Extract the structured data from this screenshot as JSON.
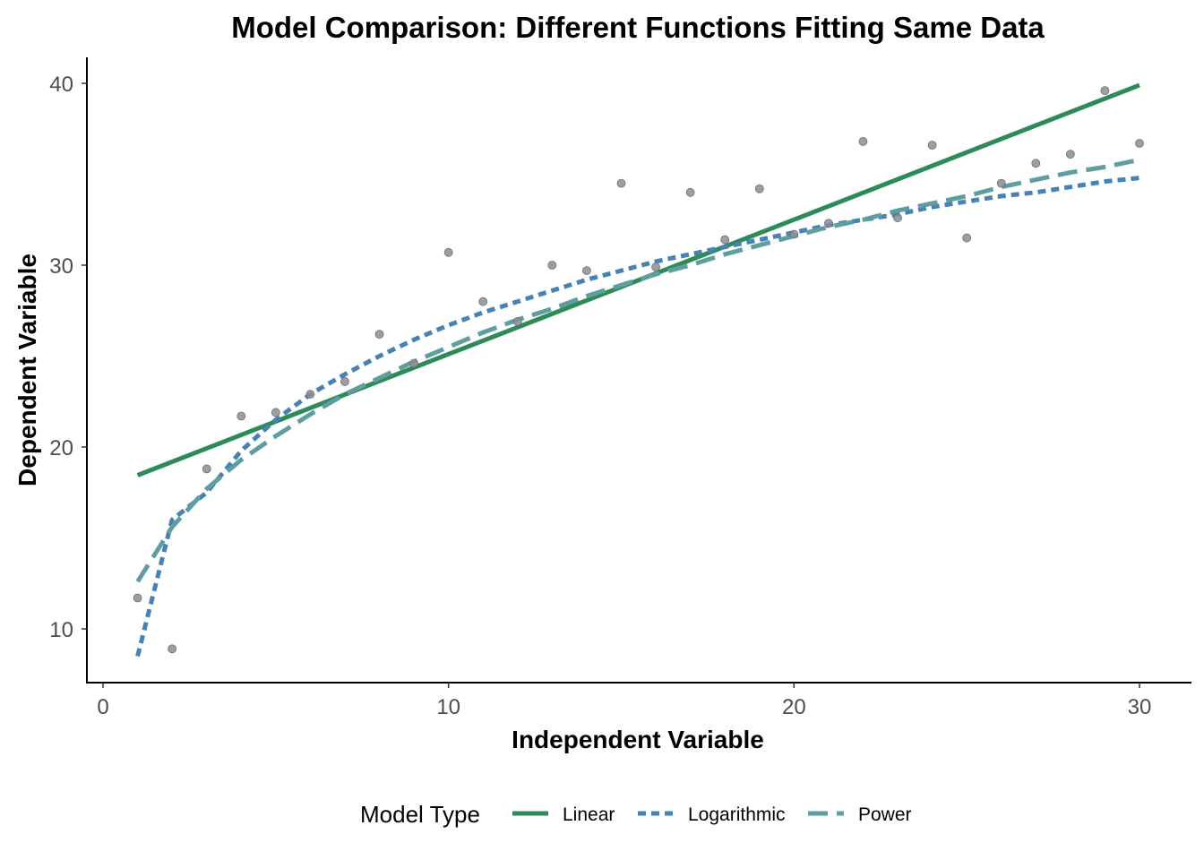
{
  "chart_data": {
    "type": "line",
    "title": "Model Comparison: Different Functions Fitting Same Data",
    "xlabel": "Independent Variable",
    "ylabel": "Dependent Variable",
    "xlim": [
      0,
      30.5
    ],
    "ylim": [
      7,
      41.5
    ],
    "x_ticks": [
      0,
      10,
      20,
      30
    ],
    "y_ticks": [
      10,
      20,
      30,
      40
    ],
    "grid": false,
    "legend": {
      "title": "Model Type",
      "position": "bottom"
    },
    "points": {
      "color": "#8c8c94",
      "x": [
        1,
        2,
        3,
        4,
        5,
        6,
        7,
        8,
        9,
        10,
        11,
        12,
        13,
        14,
        15,
        16,
        17,
        18,
        19,
        20,
        21,
        22,
        23,
        24,
        25,
        26,
        27,
        28,
        29,
        30
      ],
      "y": [
        11.7,
        8.9,
        18.8,
        21.7,
        21.9,
        22.9,
        23.6,
        26.2,
        24.6,
        30.7,
        28.0,
        26.9,
        30.0,
        29.7,
        34.5,
        29.9,
        34.0,
        31.4,
        34.2,
        31.7,
        32.3,
        36.8,
        32.6,
        36.6,
        31.5,
        34.5,
        35.6,
        36.1,
        39.6,
        36.7
      ]
    },
    "series": [
      {
        "name": "Linear",
        "color": "#2e8b57",
        "dash": "solid",
        "x": [
          1,
          30
        ],
        "y": [
          18.45,
          39.9
        ]
      },
      {
        "name": "Logarithmic",
        "color": "#4682b4",
        "dash": "dotted",
        "x": [
          1,
          2,
          3,
          4,
          5,
          6,
          7,
          8,
          9,
          10,
          11,
          12,
          13,
          14,
          15,
          16,
          17,
          18,
          19,
          20,
          21,
          22,
          23,
          24,
          25,
          26,
          27,
          28,
          29,
          30
        ],
        "y": [
          8.5,
          16.0,
          17.5,
          19.8,
          21.5,
          22.9,
          24.0,
          25.0,
          25.9,
          26.7,
          27.4,
          28.0,
          28.6,
          29.2,
          29.7,
          30.2,
          30.6,
          31.0,
          31.4,
          31.8,
          32.2,
          32.5,
          32.8,
          33.2,
          33.5,
          33.8,
          34.0,
          34.3,
          34.6,
          34.8
        ]
      },
      {
        "name": "Power",
        "color": "#5f9ea0",
        "dash": "dashed",
        "x": [
          1,
          2,
          3,
          4,
          5,
          6,
          7,
          8,
          9,
          10,
          11,
          12,
          13,
          14,
          15,
          16,
          17,
          18,
          19,
          20,
          21,
          22,
          23,
          24,
          25,
          26,
          27,
          28,
          29,
          30
        ],
        "y": [
          12.6,
          15.6,
          17.7,
          19.3,
          20.6,
          21.8,
          22.9,
          23.8,
          24.7,
          25.5,
          26.3,
          27.0,
          27.6,
          28.3,
          28.9,
          29.5,
          30.0,
          30.6,
          31.1,
          31.6,
          32.1,
          32.5,
          33.0,
          33.4,
          33.8,
          34.3,
          34.7,
          35.1,
          35.4,
          35.8
        ]
      }
    ]
  }
}
